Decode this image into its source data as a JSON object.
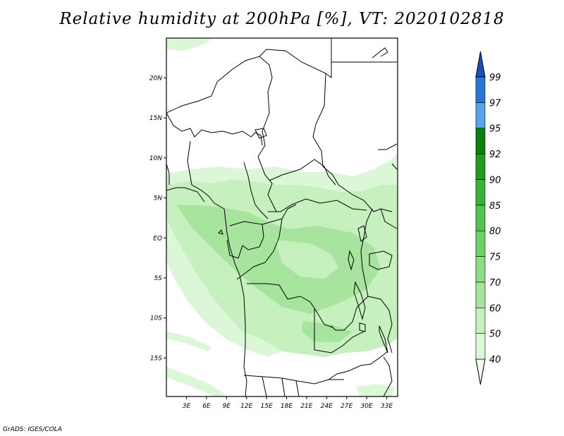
{
  "title": "Relative humidity at 200hPa [%], VT: 2020102818",
  "credit": "GrADS: IGES/COLA",
  "map": {
    "lon_labels": [
      "3E",
      "6E",
      "9E",
      "12E",
      "15E",
      "18E",
      "21E",
      "24E",
      "27E",
      "30E",
      "33E"
    ],
    "lat_labels": [
      "20N",
      "15N",
      "10N",
      "5N",
      "EQ",
      "5S",
      "10S",
      "15S"
    ]
  },
  "colorbar": {
    "labels": [
      "40",
      "50",
      "60",
      "70",
      "75",
      "80",
      "85",
      "90",
      "92",
      "95",
      "97",
      "99"
    ],
    "colors": [
      "#f0fbee",
      "#dcf7d7",
      "#c6f0be",
      "#a7e59e",
      "#8fdc86",
      "#6fd06a",
      "#53c452",
      "#3ab13b",
      "#229a22",
      "#0c800c",
      "#5aa3e8",
      "#2a75d5",
      "#1750b7"
    ]
  },
  "colors": {
    "land_light": "#dcf7d7",
    "land_mid": "#c6f0be",
    "land_dark": "#a7e59e",
    "border": "#000000"
  }
}
